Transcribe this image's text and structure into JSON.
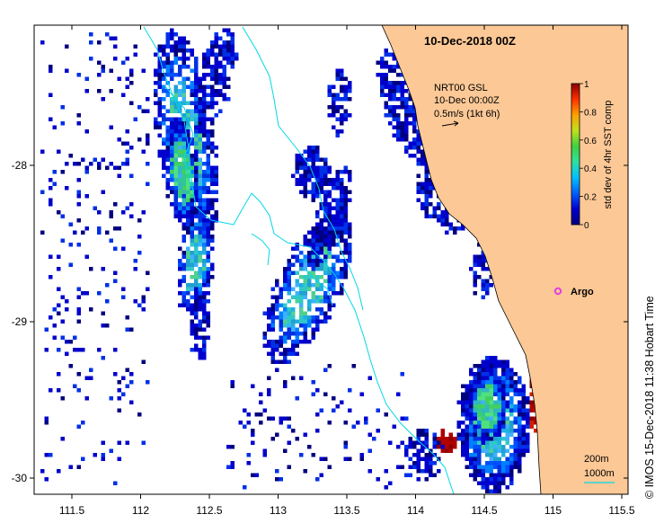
{
  "title": "10-Dec-2018 00Z",
  "legend": {
    "product": "NRT00 GSL",
    "time": "10-Dec 00:00Z",
    "vector_scale": "0.5m/s (1kt 6h)"
  },
  "colorbar": {
    "label": "std dev of 4hr SST comp",
    "ticks": [
      "0",
      "0.2",
      "0.4",
      "0.6",
      "0.8",
      "1"
    ],
    "colors": [
      "#00007f",
      "#0000d0",
      "#0060ff",
      "#00c0ff",
      "#30e0a0",
      "#40d040",
      "#c0e020",
      "#ffa000",
      "#ff3000",
      "#8b0000"
    ]
  },
  "axes": {
    "x_ticks": [
      "111.5",
      "112",
      "112.5",
      "113",
      "113.5",
      "114",
      "114.5",
      "115",
      "115.5"
    ],
    "y_ticks": [
      "-28",
      "-29",
      "-30"
    ]
  },
  "marker": {
    "label": "Argo",
    "color": "#e040e0"
  },
  "contours": {
    "shallow": "200m",
    "deep": "1000m",
    "color": "#00d8e8"
  },
  "land_color": "#fcc896",
  "credit": "© IMOS 15-Dec-2018 11:38 Hobart Time"
}
